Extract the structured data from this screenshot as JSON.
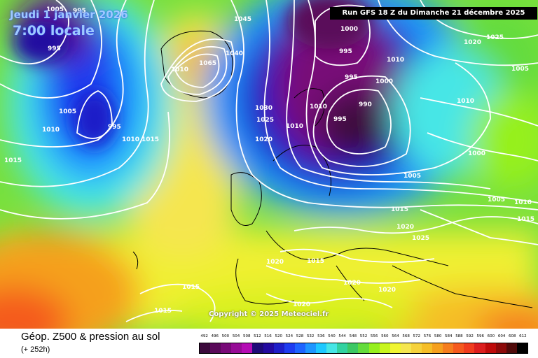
{
  "header": {
    "date": "Jeudi 1 janvier 2026",
    "time": "7:00 locale",
    "run": "Run GFS 18 Z du Dimanche 21 décembre 2025",
    "copyright": "Copyright © 2025 Meteociel.fr"
  },
  "footer": {
    "title": "Géop. Z500 & pression au sol",
    "subtitle": "(+ 252h)"
  },
  "scale": {
    "values": [
      "492",
      "496",
      "500",
      "504",
      "508",
      "512",
      "516",
      "520",
      "524",
      "528",
      "532",
      "536",
      "540",
      "544",
      "548",
      "552",
      "556",
      "560",
      "564",
      "568",
      "572",
      "576",
      "580",
      "584",
      "588",
      "592",
      "596",
      "600",
      "604",
      "608",
      "612"
    ],
    "colors": [
      "#3c0a3c",
      "#5a0a5a",
      "#780a78",
      "#960c96",
      "#b40cb4",
      "#1e0a78",
      "#230aa0",
      "#1e1ec8",
      "#1e3cf0",
      "#1e64ff",
      "#1e96ff",
      "#1ec8ff",
      "#46e6e6",
      "#32d2a0",
      "#3cc864",
      "#64dc3c",
      "#96f01e",
      "#c8f51e",
      "#f0f532",
      "#f5e650",
      "#f5d23c",
      "#f5be28",
      "#f5a01e",
      "#f57d1e",
      "#f55a1e",
      "#f03c1e",
      "#dc1e1e",
      "#be0a0a",
      "#8c0a0a",
      "#500a0a",
      "#000000"
    ]
  },
  "contour_labels": [
    "995",
    "1005",
    "995",
    "1010",
    "1005",
    "1010",
    "995",
    "1010",
    "1015",
    "1015",
    "1065",
    "1040",
    "1045",
    "1000",
    "995",
    "995",
    "1010",
    "1000",
    "990",
    "995",
    "1030",
    "1025",
    "1020",
    "1010",
    "1010",
    "1025",
    "1020",
    "1005",
    "1010",
    "1000",
    "1005",
    "1005",
    "1010",
    "1015",
    "1015",
    "1020",
    "1025",
    "1020",
    "1015",
    "1020",
    "1020",
    "1015",
    "1015",
    "1020"
  ]
}
